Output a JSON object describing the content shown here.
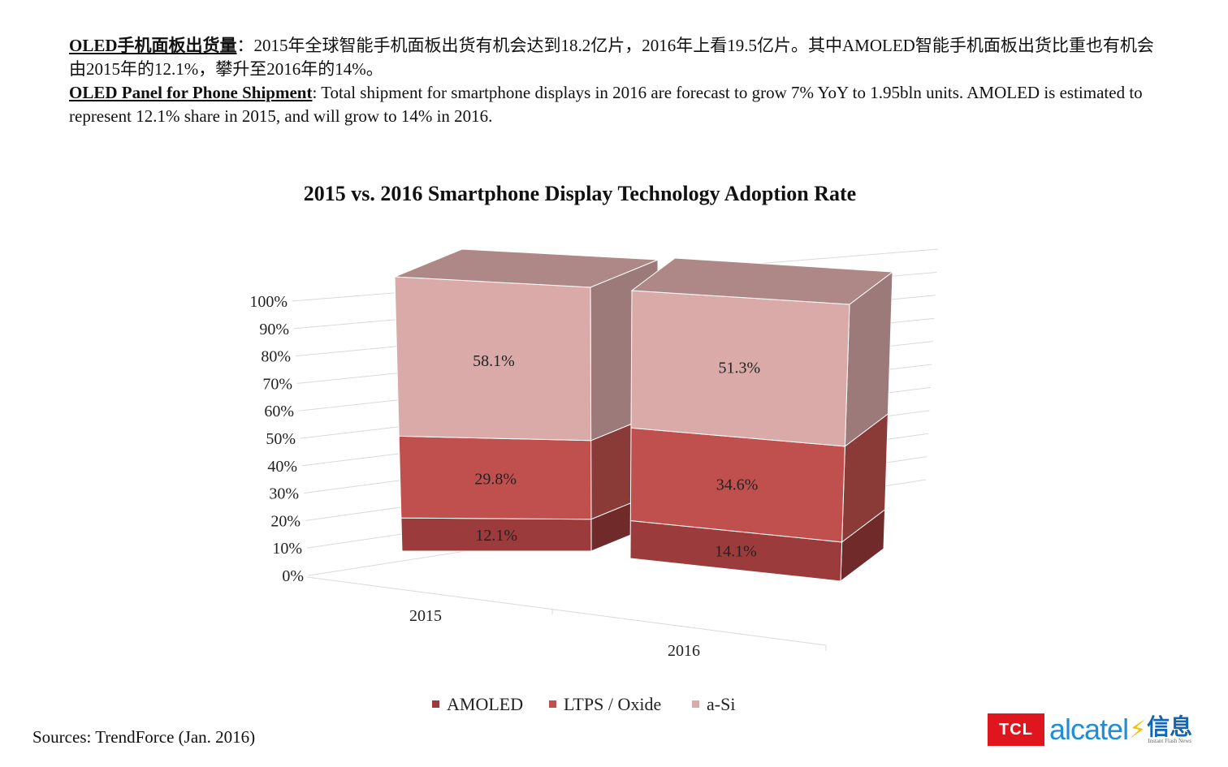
{
  "header": {
    "cn_title": "OLED手机面板出货量",
    "cn_body": "：2015年全球智能手机面板出货有机会达到18.2亿片，2016年上看19.5亿片。其中AMOLED智能手机面板出货比重也有机会由2015年的12.1%，攀升至2016年的14%。",
    "en_title": "OLED Panel for Phone Shipment",
    "en_body": ": Total shipment for smartphone displays in 2016 are forecast to grow 7% YoY to 1.95bln units. AMOLED is estimated to represent 12.1% share in 2015, and will grow to 14% in 2016."
  },
  "chart_data": {
    "type": "bar",
    "stacked": true,
    "percent_stacked": true,
    "three_d": true,
    "title": "2015 vs. 2016 Smartphone Display Technology Adoption Rate",
    "categories": [
      "2015",
      "2016"
    ],
    "series": [
      {
        "name": "AMOLED",
        "values": [
          12.1,
          14.1
        ],
        "labels": [
          "12.1%",
          "14.1%"
        ],
        "color": "#9c3b3b"
      },
      {
        "name": "LTPS / Oxide",
        "values": [
          29.8,
          34.6
        ],
        "labels": [
          "29.8%",
          "34.6%"
        ],
        "color": "#c0504d"
      },
      {
        "name": "a-Si",
        "values": [
          58.1,
          51.3
        ],
        "labels": [
          "58.1%",
          "51.3%"
        ],
        "color": "#d9aaa8"
      }
    ],
    "y_ticks": [
      "0%",
      "10%",
      "20%",
      "30%",
      "40%",
      "50%",
      "60%",
      "70%",
      "80%",
      "90%",
      "100%"
    ],
    "ylim": [
      0,
      100
    ],
    "grid": true,
    "legend_position": "bottom"
  },
  "footer": {
    "sources": "Sources: TrendForce (Jan. 2016)",
    "logo_tcl": "TCL",
    "logo_alcatel": "alcatel",
    "logo_xinxi": "信息",
    "logo_tagline": "Instant Flash News"
  }
}
